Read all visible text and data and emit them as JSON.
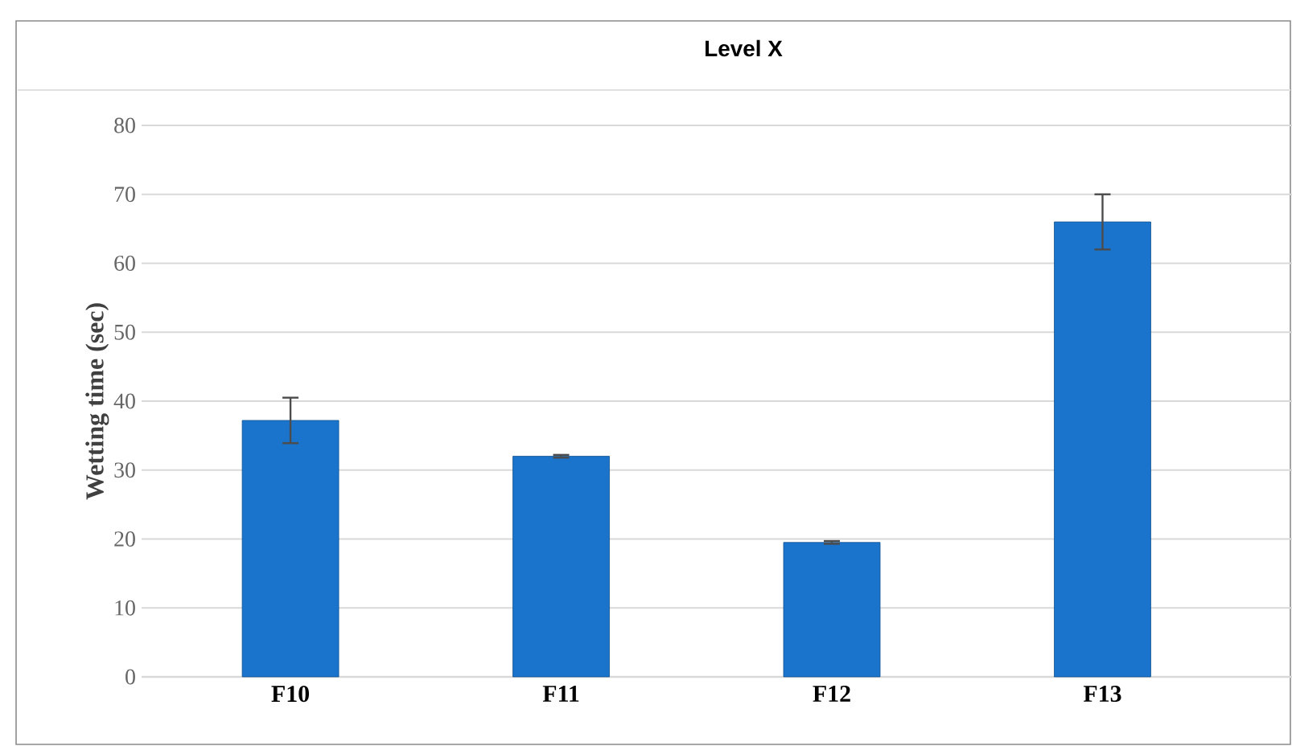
{
  "chart_data": {
    "type": "bar",
    "title": "Level X",
    "ylabel": "Wetting time (sec)",
    "categories": [
      "F10",
      "F11",
      "F12",
      "F13"
    ],
    "values": [
      37.2,
      32,
      19.5,
      66
    ],
    "errors": [
      3.3,
      0.2,
      0.2,
      4
    ],
    "color": "#1a74cc",
    "ylim": [
      0,
      80
    ],
    "yticks": [
      0,
      10,
      20,
      30,
      40,
      50,
      60,
      70,
      80
    ],
    "grid": "y"
  }
}
